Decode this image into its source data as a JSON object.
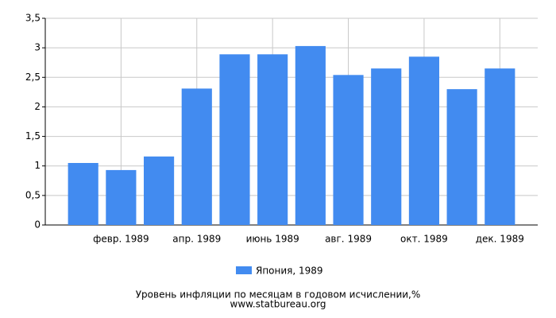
{
  "chart_data": {
    "type": "bar",
    "title": "Уровень инфляции по месяцам в годовом исчислении,%",
    "subtitle": "www.statbureau.org",
    "categories": [
      null,
      "февр. 1989",
      null,
      "апр. 1989",
      null,
      "июнь 1989",
      null,
      "авг. 1989",
      null,
      "окт. 1989",
      null,
      "дек. 1989"
    ],
    "series": [
      {
        "name": "Япония, 1989",
        "color": "#428bf0",
        "values": [
          1.05,
          0.93,
          1.16,
          2.31,
          2.89,
          2.89,
          3.03,
          2.54,
          2.65,
          2.85,
          2.3,
          2.65
        ]
      }
    ],
    "ylim": [
      0,
      3.5
    ],
    "yticks": [
      0,
      {
        "value": 0.5,
        "label": "0,5"
      },
      1,
      {
        "value": 1.5,
        "label": "1,5"
      },
      2,
      {
        "value": 2.5,
        "label": "2,5"
      },
      3,
      {
        "value": 3.5,
        "label": "3,5"
      }
    ],
    "grid": true
  }
}
